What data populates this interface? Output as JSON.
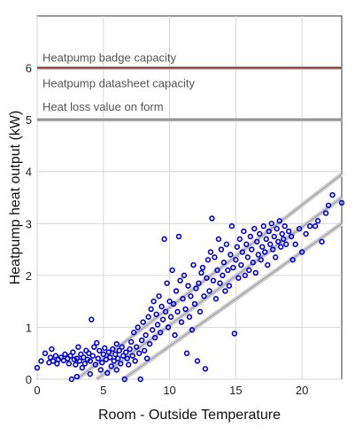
{
  "chart_data": {
    "type": "scatter",
    "xlabel": "Room - Outside Temperature",
    "ylabel": "Heatpump heat output (kW)",
    "xlim": [
      0,
      23
    ],
    "ylim": [
      0,
      7
    ],
    "x_ticks": [
      "0",
      "5",
      "10",
      "15",
      "20"
    ],
    "y_ticks": [
      "0",
      "1",
      "2",
      "3",
      "4",
      "5",
      "6"
    ],
    "grid": true,
    "reference_lines": [
      {
        "label": "Heatpump badge capacity",
        "value": 6,
        "color": "#8b1a1a"
      },
      {
        "label": "Heatpump datasheet capacity",
        "value": 6,
        "color": "#cccccc"
      },
      {
        "label": "Heat loss value on form",
        "value": 5,
        "color": "#888888"
      }
    ],
    "trend_lines": [
      {
        "from": [
          3.0,
          0.0
        ],
        "to": [
          23.0,
          3.95
        ]
      },
      {
        "from": [
          4.5,
          0.0
        ],
        "to": [
          23.0,
          3.5
        ]
      },
      {
        "from": [
          6.5,
          0.0
        ],
        "to": [
          23.0,
          3.0
        ]
      }
    ],
    "point_color": "#0000dd",
    "series": [
      {
        "points": [
          [
            0,
            0.22
          ],
          [
            0.3,
            0.35
          ],
          [
            0.6,
            0.5
          ],
          [
            0.9,
            0.32
          ],
          [
            1.0,
            0.42
          ],
          [
            1.1,
            0.58
          ],
          [
            1.2,
            0.35
          ],
          [
            1.4,
            0.45
          ],
          [
            1.5,
            0.3
          ],
          [
            1.6,
            0.38
          ],
          [
            1.8,
            0.42
          ],
          [
            2.0,
            0.36
          ],
          [
            2.1,
            0.48
          ],
          [
            2.3,
            0.4
          ],
          [
            2.4,
            0.3
          ],
          [
            2.5,
            0.45
          ],
          [
            2.6,
            0.0
          ],
          [
            2.7,
            0.52
          ],
          [
            2.8,
            0.38
          ],
          [
            2.9,
            0.28
          ],
          [
            3.0,
            0.4
          ],
          [
            3.0,
            0.05
          ],
          [
            3.1,
            0.62
          ],
          [
            3.2,
            0.35
          ],
          [
            3.3,
            0.48
          ],
          [
            3.4,
            0.22
          ],
          [
            3.5,
            0.42
          ],
          [
            3.6,
            0.3
          ],
          [
            3.7,
            0.55
          ],
          [
            3.8,
            0.38
          ],
          [
            3.9,
            0.5
          ],
          [
            4.0,
            0.35
          ],
          [
            4.0,
            0.1
          ],
          [
            4.1,
            1.15
          ],
          [
            4.2,
            0.45
          ],
          [
            4.3,
            0.62
          ],
          [
            4.4,
            0.28
          ],
          [
            4.5,
            0.7
          ],
          [
            4.6,
            0.4
          ],
          [
            4.7,
            0.55
          ],
          [
            4.8,
            0.18
          ],
          [
            4.9,
            0.32
          ],
          [
            5.0,
            0.48
          ],
          [
            5.1,
            0.6
          ],
          [
            5.2,
            0.38
          ],
          [
            5.3,
            0.12
          ],
          [
            5.4,
            0.52
          ],
          [
            5.5,
            0.42
          ],
          [
            5.6,
            0.25
          ],
          [
            5.7,
            0.58
          ],
          [
            5.8,
            0.35
          ],
          [
            5.9,
            0.48
          ],
          [
            6.0,
            0.68
          ],
          [
            6.0,
            0.18
          ],
          [
            6.1,
            0.4
          ],
          [
            6.2,
            0.55
          ],
          [
            6.3,
            0.3
          ],
          [
            6.4,
            0.62
          ],
          [
            6.5,
            0.45
          ],
          [
            6.6,
            0.0
          ],
          [
            6.7,
            0.52
          ],
          [
            6.8,
            0.4
          ],
          [
            6.9,
            0.28
          ],
          [
            7.0,
            0.58
          ],
          [
            7.1,
            0.72
          ],
          [
            7.2,
            0.45
          ],
          [
            7.3,
            0.9
          ],
          [
            7.4,
            0.35
          ],
          [
            7.5,
            0.62
          ],
          [
            7.6,
            1.0
          ],
          [
            7.7,
            0.5
          ],
          [
            7.8,
            0.0
          ],
          [
            7.9,
            0.75
          ],
          [
            8.0,
            1.1
          ],
          [
            8.1,
            0.55
          ],
          [
            8.2,
            0.85
          ],
          [
            8.3,
            0.4
          ],
          [
            8.4,
            1.2
          ],
          [
            8.5,
            0.68
          ],
          [
            8.6,
            1.35
          ],
          [
            8.7,
            0.95
          ],
          [
            8.8,
            1.5
          ],
          [
            8.9,
            0.8
          ],
          [
            9.0,
            1.25
          ],
          [
            9.1,
            1.05
          ],
          [
            9.2,
            1.6
          ],
          [
            9.3,
            0.9
          ],
          [
            9.4,
            1.4
          ],
          [
            9.5,
            1.15
          ],
          [
            9.6,
            2.7
          ],
          [
            9.7,
            1.3
          ],
          [
            9.8,
            1.85
          ],
          [
            9.9,
            1.0
          ],
          [
            10.0,
            1.5
          ],
          [
            10.1,
            1.2
          ],
          [
            10.2,
            2.1
          ],
          [
            10.3,
            1.45
          ],
          [
            10.4,
            0.85
          ],
          [
            10.5,
            1.7
          ],
          [
            10.6,
            1.3
          ],
          [
            10.7,
            2.75
          ],
          [
            10.8,
            1.9
          ],
          [
            10.9,
            1.1
          ],
          [
            11.0,
            1.55
          ],
          [
            11.1,
            2.0
          ],
          [
            11.2,
            1.35
          ],
          [
            11.3,
            0.5
          ],
          [
            11.4,
            1.8
          ],
          [
            11.5,
            1.2
          ],
          [
            11.6,
            1.6
          ],
          [
            11.7,
            0.95
          ],
          [
            11.8,
            2.2
          ],
          [
            11.9,
            1.45
          ],
          [
            12.0,
            1.75
          ],
          [
            12.1,
            0.35
          ],
          [
            12.2,
            1.85
          ],
          [
            12.3,
            1.3
          ],
          [
            12.4,
            2.05
          ],
          [
            12.5,
            2.15
          ],
          [
            12.6,
            1.6
          ],
          [
            12.7,
            0.2
          ],
          [
            12.8,
            1.95
          ],
          [
            12.9,
            2.3
          ],
          [
            13.0,
            1.7
          ],
          [
            13.1,
            2.45
          ],
          [
            13.2,
            3.1
          ],
          [
            13.3,
            1.9
          ],
          [
            13.4,
            2.35
          ],
          [
            13.5,
            1.55
          ],
          [
            13.6,
            2.1
          ],
          [
            13.7,
            2.7
          ],
          [
            13.8,
            1.85
          ],
          [
            13.9,
            2.5
          ],
          [
            14.0,
            2.0
          ],
          [
            14.1,
            2.25
          ],
          [
            14.2,
            1.7
          ],
          [
            14.3,
            2.6
          ],
          [
            14.4,
            2.1
          ],
          [
            14.5,
            1.8
          ],
          [
            14.6,
            2.4
          ],
          [
            14.7,
            2.95
          ],
          [
            14.8,
            2.15
          ],
          [
            14.9,
            0.88
          ],
          [
            15.0,
            2.3
          ],
          [
            15.1,
            2.55
          ],
          [
            15.2,
            1.95
          ],
          [
            15.3,
            2.7
          ],
          [
            15.4,
            2.2
          ],
          [
            15.5,
            2.45
          ],
          [
            15.6,
            2.85
          ],
          [
            15.7,
            2.0
          ],
          [
            15.8,
            2.6
          ],
          [
            15.9,
            2.35
          ],
          [
            16.0,
            2.1
          ],
          [
            16.1,
            2.75
          ],
          [
            16.2,
            2.5
          ],
          [
            16.3,
            2.25
          ],
          [
            16.4,
            2.9
          ],
          [
            16.5,
            2.05
          ],
          [
            16.6,
            2.65
          ],
          [
            16.7,
            2.4
          ],
          [
            16.8,
            2.8
          ],
          [
            16.9,
            2.3
          ],
          [
            17.0,
            2.55
          ],
          [
            17.1,
            2.95
          ],
          [
            17.2,
            2.45
          ],
          [
            17.3,
            2.7
          ],
          [
            17.4,
            2.2
          ],
          [
            17.5,
            2.85
          ],
          [
            17.6,
            2.6
          ],
          [
            17.7,
            3.0
          ],
          [
            17.8,
            2.5
          ],
          [
            17.9,
            2.75
          ],
          [
            18.0,
            2.35
          ],
          [
            18.1,
            2.9
          ],
          [
            18.2,
            2.65
          ],
          [
            18.3,
            3.05
          ],
          [
            18.4,
            2.55
          ],
          [
            18.5,
            2.8
          ],
          [
            18.6,
            2.7
          ],
          [
            18.7,
            2.95
          ],
          [
            18.8,
            2.6
          ],
          [
            19.0,
            2.85
          ],
          [
            19.2,
            2.75
          ],
          [
            19.3,
            2.3
          ],
          [
            19.5,
            2.6
          ],
          [
            19.8,
            2.9
          ],
          [
            20.0,
            2.45
          ],
          [
            20.3,
            2.8
          ],
          [
            20.6,
            2.95
          ],
          [
            21.0,
            2.95
          ],
          [
            21.2,
            3.05
          ],
          [
            21.5,
            2.65
          ],
          [
            21.8,
            3.2
          ],
          [
            22.0,
            3.35
          ],
          [
            22.3,
            3.55
          ],
          [
            23.0,
            3.4
          ]
        ]
      }
    ]
  }
}
